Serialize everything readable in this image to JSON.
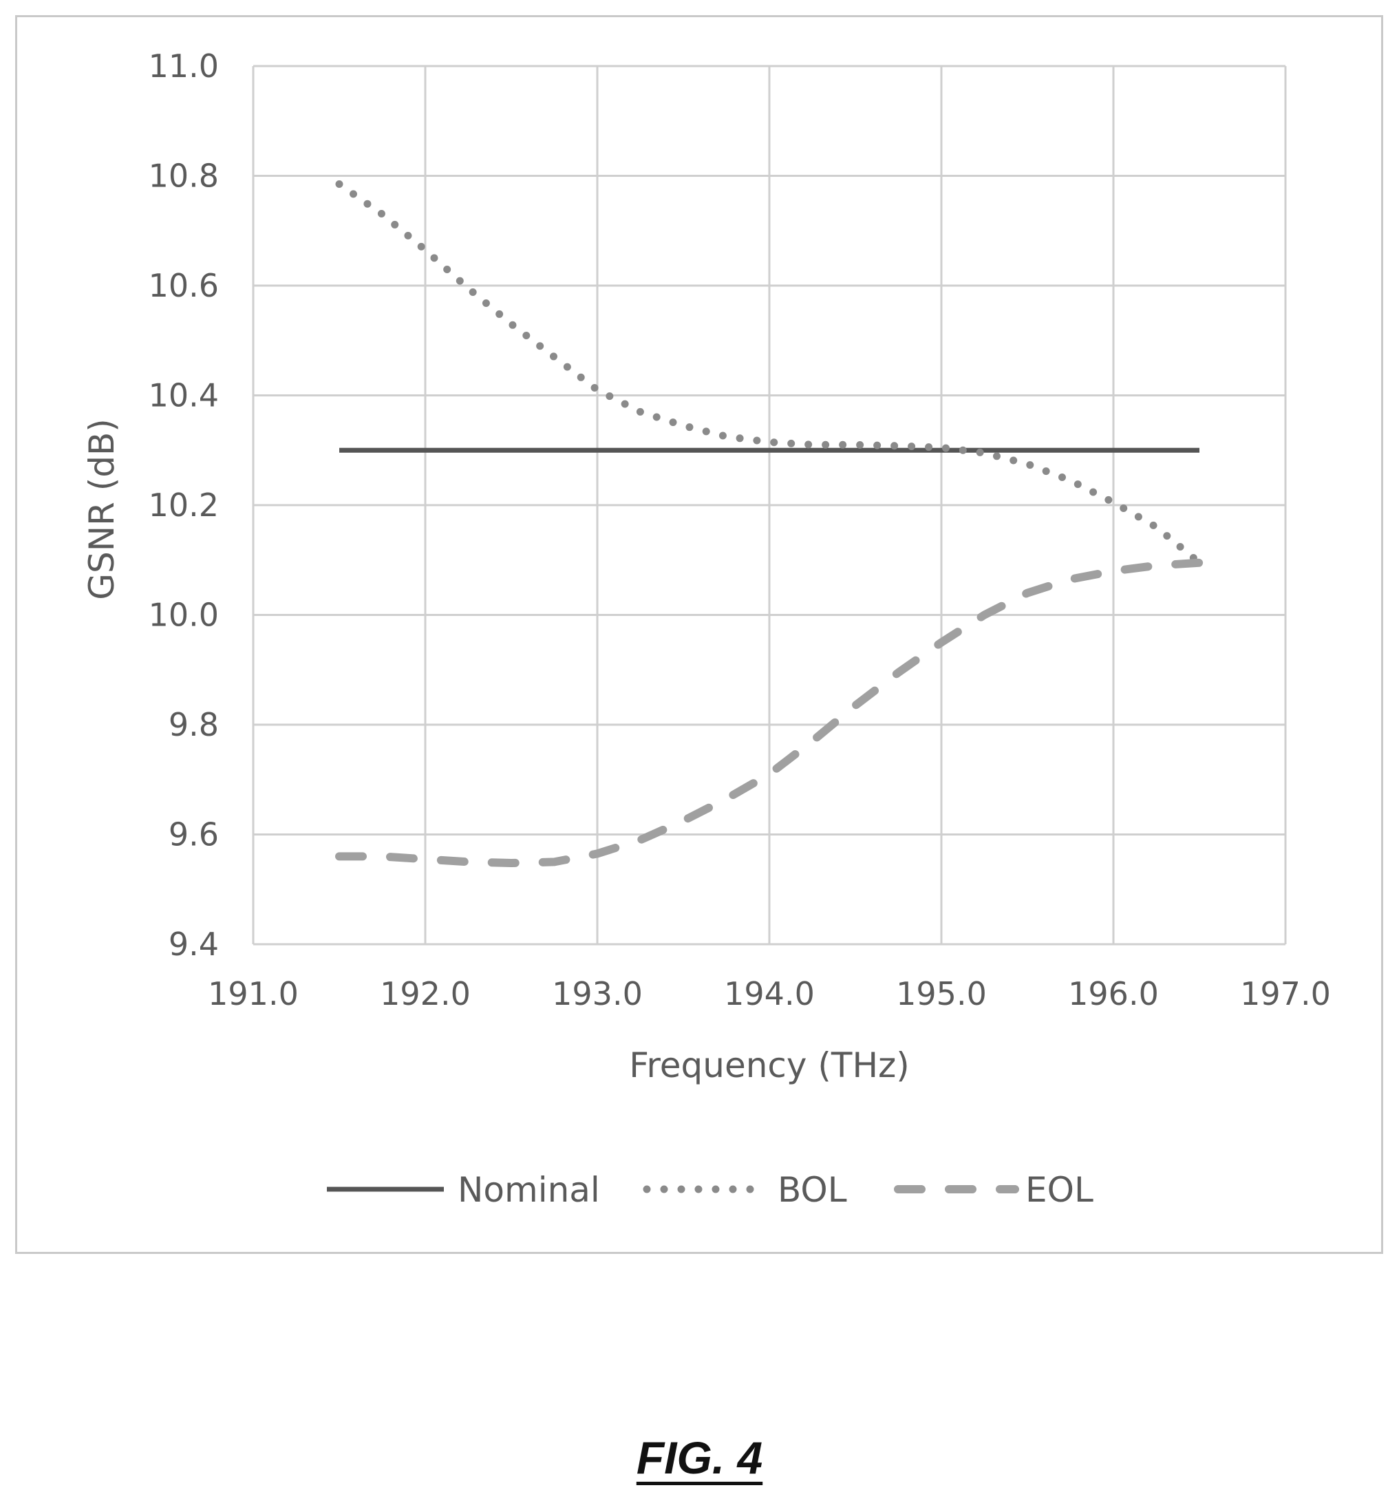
{
  "chart_data": {
    "type": "line",
    "title": "",
    "xlabel": "Frequency (THz)",
    "ylabel": "GSNR (dB)",
    "xlim": [
      191.0,
      197.0
    ],
    "ylim": [
      9.4,
      11.0
    ],
    "x_ticks": [
      "191.0",
      "192.0",
      "193.0",
      "194.0",
      "195.0",
      "196.0",
      "197.0"
    ],
    "y_ticks": [
      "11.0",
      "10.8",
      "10.6",
      "10.4",
      "10.2",
      "10.0",
      "9.8",
      "9.6",
      "9.4"
    ],
    "grid": true,
    "legend_position": "bottom",
    "series": [
      {
        "name": "Nominal",
        "style": "solid",
        "color": "#555555",
        "x": [
          191.5,
          196.5
        ],
        "y": [
          10.3,
          10.3
        ]
      },
      {
        "name": "BOL",
        "style": "dotted",
        "color": "#8a8a8a",
        "x": [
          191.5,
          191.75,
          192.0,
          192.25,
          192.5,
          192.75,
          193.0,
          193.25,
          193.5,
          193.75,
          194.0,
          194.25,
          194.5,
          194.75,
          195.0,
          195.25,
          195.5,
          195.75,
          196.0,
          196.25,
          196.5
        ],
        "y": [
          10.785,
          10.73,
          10.665,
          10.595,
          10.53,
          10.47,
          10.41,
          10.37,
          10.345,
          10.325,
          10.315,
          10.31,
          10.31,
          10.308,
          10.305,
          10.295,
          10.275,
          10.245,
          10.205,
          10.16,
          10.095
        ]
      },
      {
        "name": "EOL",
        "style": "dashed",
        "color": "#a0a0a0",
        "x": [
          191.5,
          191.75,
          192.0,
          192.25,
          192.5,
          192.75,
          193.0,
          193.25,
          193.5,
          193.75,
          194.0,
          194.25,
          194.5,
          194.75,
          195.0,
          195.25,
          195.5,
          195.75,
          196.0,
          196.25,
          196.5
        ],
        "y": [
          9.56,
          9.56,
          9.555,
          9.55,
          9.548,
          9.55,
          9.565,
          9.59,
          9.625,
          9.665,
          9.71,
          9.77,
          9.835,
          9.895,
          9.95,
          10.0,
          10.04,
          10.065,
          10.08,
          10.09,
          10.095
        ]
      }
    ]
  },
  "figure": {
    "label": "FIG. 4"
  }
}
